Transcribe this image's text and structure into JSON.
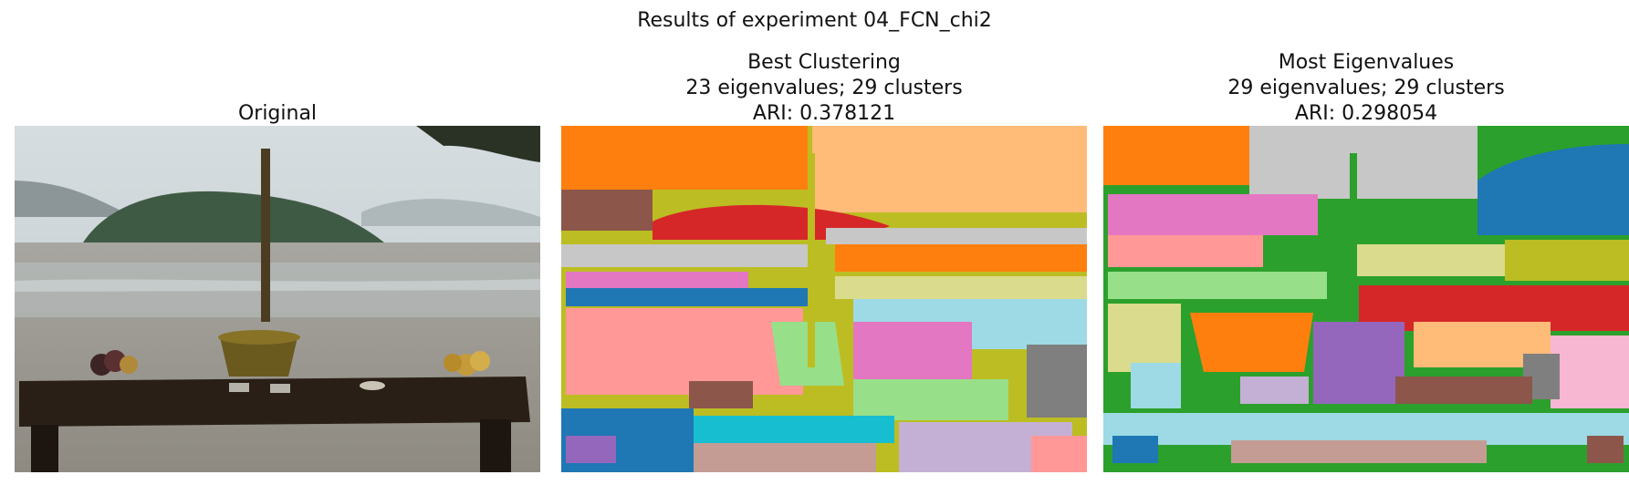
{
  "figure": {
    "title": "Results of experiment 04_FCN_chi2"
  },
  "panels": [
    {
      "title_lines": [
        "Original"
      ]
    },
    {
      "title_lines": [
        "Best Clustering",
        "23 eigenvalues; 29 clusters",
        "ARI: 0.378121"
      ]
    },
    {
      "title_lines": [
        "Most Eigenvalues",
        "29 eigenvalues; 29 clusters",
        "ARI: 0.298054"
      ]
    }
  ],
  "colors": {
    "tab_orange": "#ff7f0e",
    "tab_light_orange": "#ffbb78",
    "tab_red": "#d62728",
    "tab_brown": "#8c564b",
    "tab_olive": "#bcbd22",
    "tab_light_olive": "#dbdb8d",
    "tab_gray": "#c7c7c7",
    "tab_dark_gray": "#7f7f7f",
    "tab_pink": "#e377c2",
    "tab_light_pink": "#f7b6d2",
    "tab_salmon": "#ff9896",
    "tab_blue": "#1f77b4",
    "tab_light_blue": "#9edae5",
    "tab_cyan": "#17becf",
    "tab_green": "#2ca02c",
    "tab_light_green": "#98df8a",
    "tab_purple": "#9467bd",
    "tab_lavender": "#c5b0d5",
    "tab_rose": "#c49c94"
  }
}
